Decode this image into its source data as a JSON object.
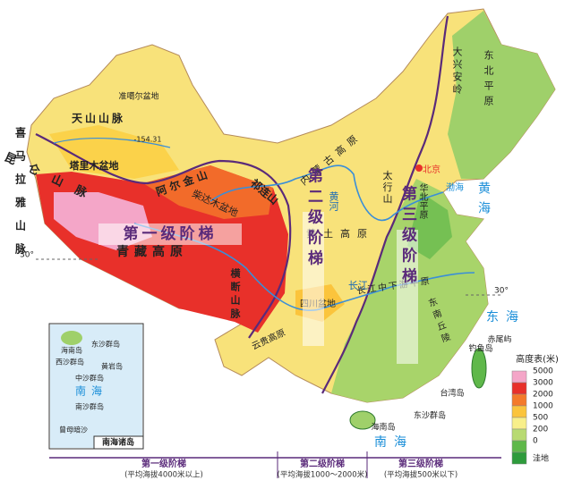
{
  "map_labels": [
    "准噶尔盆地",
    "天山山脉",
    "-154.31",
    "塔里木盆地",
    "昆仑山脉",
    "阿尔金山",
    "柴达木盆地",
    "祁连山",
    "青藏高原",
    "横断山脉",
    "四川盆地",
    "云贵高原",
    "内蒙古高原",
    "黄土高原",
    "大兴安岭",
    "东北平原",
    "太行山",
    "华北平原",
    "北京",
    "长江中下游平原",
    "东南丘陵",
    "喜马拉雅山脉",
    "黄河",
    "长江"
  ],
  "step_labels": [
    "第一级阶梯",
    "第二级阶梯",
    "第三级阶梯"
  ],
  "seas": [
    "渤海",
    "黄海",
    "东海",
    "南海"
  ],
  "islands": [
    "台湾岛",
    "钓鱼岛",
    "赤尾屿",
    "海南岛",
    "东沙群岛"
  ],
  "latitude": [
    "30°",
    "30°"
  ],
  "inset": {
    "title": "南海诸岛",
    "labels": [
      "海南岛",
      "东沙群岛",
      "西沙群岛",
      "黄岩岛",
      "中沙群岛",
      "南海",
      "南沙群岛",
      "曾母暗沙"
    ]
  },
  "legend": {
    "title": "高度表(米)",
    "levels": [
      {
        "label": "5000",
        "color": "#f4a6c8"
      },
      {
        "label": "3000",
        "color": "#e8302a"
      },
      {
        "label": "2000",
        "color": "#f47a2a"
      },
      {
        "label": "1000",
        "color": "#fbc43c"
      },
      {
        "label": "500",
        "color": "#f8ef8a"
      },
      {
        "label": "200",
        "color": "#b8da72"
      },
      {
        "label": "0",
        "color": "#5fb84a"
      },
      {
        "label": "洼地",
        "color": "#2e9b3c"
      }
    ]
  },
  "footer": [
    {
      "title": "第一级阶梯",
      "note": "(平均海拔4000米以上)"
    },
    {
      "title": "第二级阶梯",
      "note": "(平均海拔1000～2000米)"
    },
    {
      "title": "第三级阶梯",
      "note": "(平均海拔500米以下)"
    }
  ]
}
